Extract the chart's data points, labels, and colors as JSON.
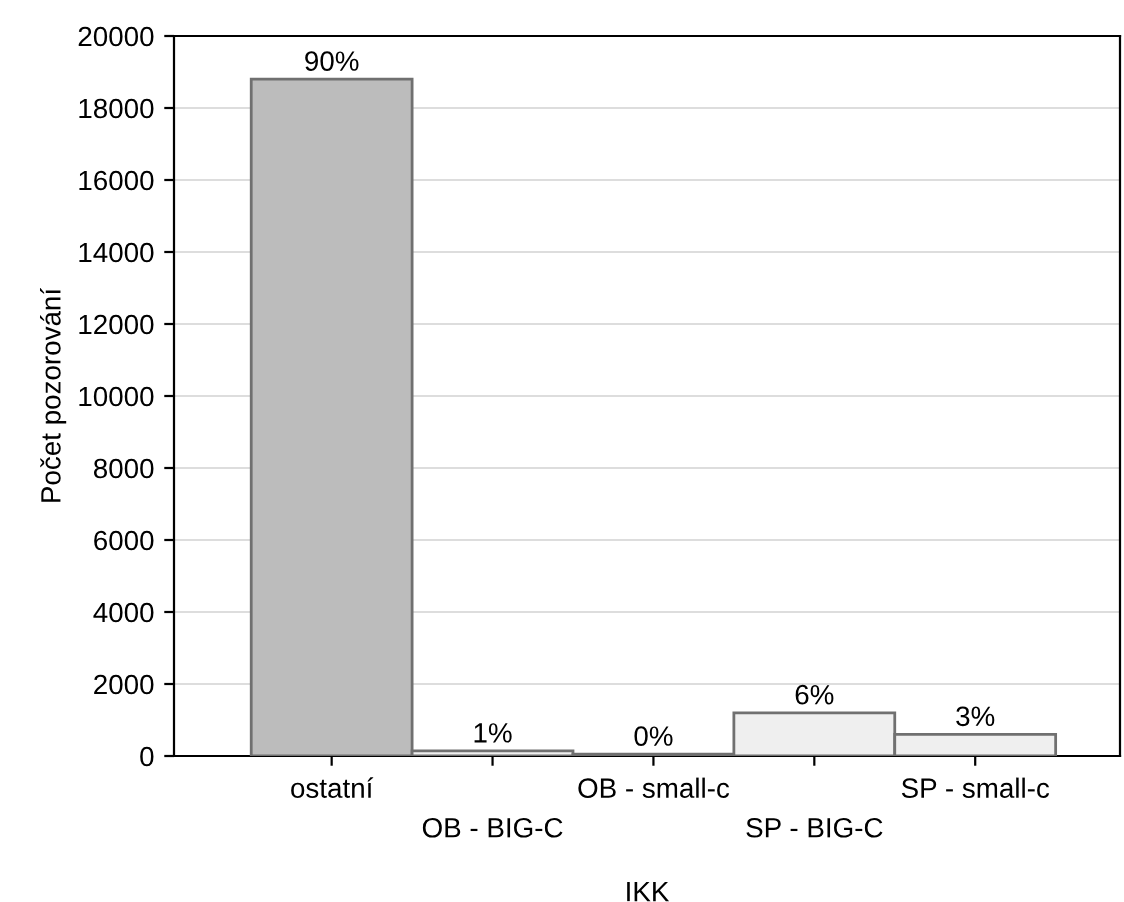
{
  "chart_data": {
    "type": "bar",
    "xlabel": "IKK",
    "ylabel": "Počet pozorování",
    "categories": [
      "ostatní",
      "OB - BIG-C",
      "OB - small-c",
      "SP - BIG-C",
      "SP - small-c"
    ],
    "values": [
      18800,
      140,
      50,
      1200,
      600
    ],
    "annotations": [
      {
        "text": "90%",
        "x": "ostatní",
        "y": 18800
      },
      {
        "text": "1%",
        "x": "OB - BIG-C",
        "y": 140
      },
      {
        "text": "0%",
        "x": "OB - small-c",
        "y": 50
      },
      {
        "text": "6%",
        "x": "SP - BIG-C",
        "y": 1200
      },
      {
        "text": "3%",
        "x": "SP - small-c",
        "y": 600
      }
    ],
    "colors": [
      "#bcbcbc",
      "#efefef",
      "#efefef",
      "#efefef",
      "#efefef"
    ],
    "ylim": [
      0,
      20000
    ],
    "yticks": [
      0,
      2000,
      4000,
      6000,
      8000,
      10000,
      12000,
      14000,
      16000,
      18000,
      20000
    ],
    "grid": "y",
    "legend": false
  }
}
